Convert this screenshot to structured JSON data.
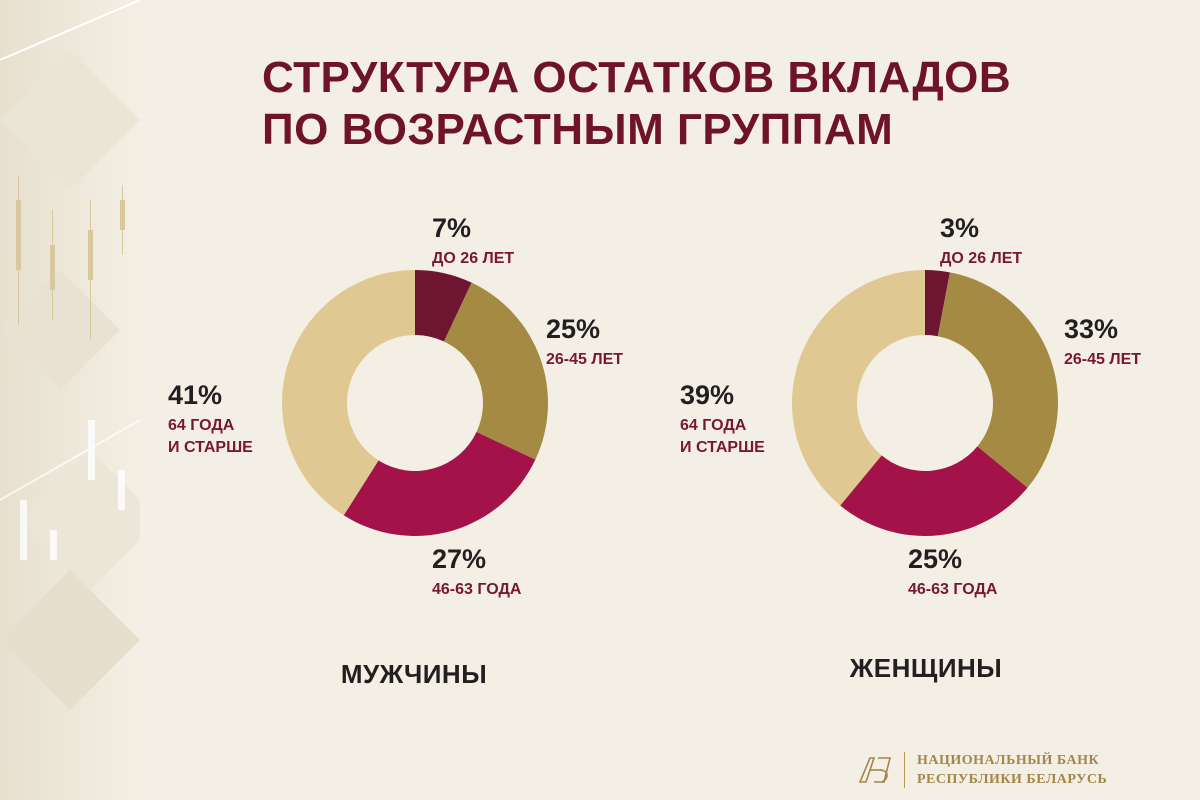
{
  "title": {
    "line1": "СТРУКТУРА ОСТАТКОВ ВКЛАДОВ",
    "line2": "ПО ВОЗРАСТНЫМ ГРУППАМ"
  },
  "colors": {
    "segments": [
      "#6d1531",
      "#a58a43",
      "#a31248",
      "#dfc891"
    ],
    "title": "#6e1329",
    "label": "#7a1730",
    "background": "#f3efe4"
  },
  "chart_data": [
    {
      "type": "pie",
      "title": "МУЖЧИНЫ",
      "slices": [
        {
          "value": 7,
          "pct_label": "7%",
          "label_lines": [
            "ДО 26 ЛЕТ"
          ]
        },
        {
          "value": 25,
          "pct_label": "25%",
          "label_lines": [
            "26-45 ЛЕТ"
          ]
        },
        {
          "value": 27,
          "pct_label": "27%",
          "label_lines": [
            "46-63 ГОДА"
          ]
        },
        {
          "value": 41,
          "pct_label": "41%",
          "label_lines": [
            "64 ГОДА",
            "И СТАРШЕ"
          ]
        }
      ]
    },
    {
      "type": "pie",
      "title": "ЖЕНЩИНЫ",
      "slices": [
        {
          "value": 3,
          "pct_label": "3%",
          "label_lines": [
            "ДО 26 ЛЕТ"
          ]
        },
        {
          "value": 33,
          "pct_label": "33%",
          "label_lines": [
            "26-45 ЛЕТ"
          ]
        },
        {
          "value": 25,
          "pct_label": "25%",
          "label_lines": [
            "46-63 ГОДА"
          ]
        },
        {
          "value": 39,
          "pct_label": "39%",
          "label_lines": [
            "64 ГОДА",
            "И СТАРШЕ"
          ]
        }
      ]
    }
  ],
  "logo": {
    "line1": "НАЦИОНАЛЬНЫЙ БАНК",
    "line2": "РЕСПУБЛИКИ БЕЛАРУСЬ"
  }
}
